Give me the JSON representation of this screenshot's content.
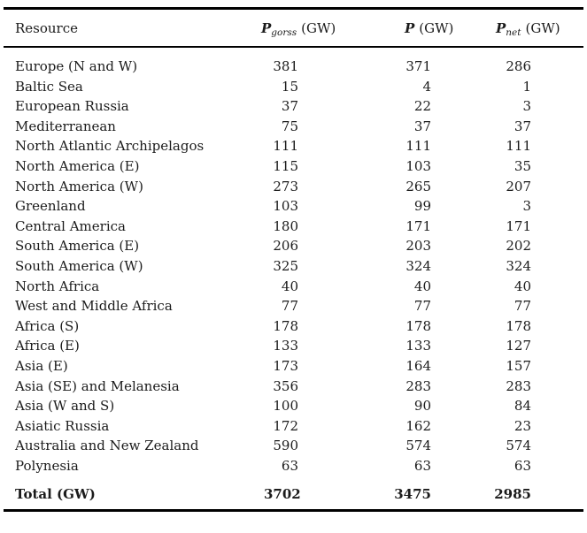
{
  "colors": {
    "text": "#1b1b1b",
    "rule": "#000000",
    "background": "#ffffff"
  },
  "table": {
    "header": {
      "resource": "Resource",
      "p_gorss": {
        "symbol": "P",
        "subscript": "gorss",
        "unit": "(GW)"
      },
      "p": {
        "symbol": "P",
        "subscript": "",
        "unit": "(GW)"
      },
      "p_net": {
        "symbol": "P",
        "subscript": "net",
        "unit": "(GW)"
      }
    },
    "rows": [
      {
        "name": "Europe (N and W)",
        "gross": "381",
        "p": "371",
        "net": "286"
      },
      {
        "name": "Baltic Sea",
        "gross": "15",
        "p": "4",
        "net": "1"
      },
      {
        "name": "European Russia",
        "gross": "37",
        "p": "22",
        "net": "3"
      },
      {
        "name": "Mediterranean",
        "gross": "75",
        "p": "37",
        "net": "37"
      },
      {
        "name": "North Atlantic Archipelagos",
        "gross": "111",
        "p": "111",
        "net": "111"
      },
      {
        "name": "North America (E)",
        "gross": "115",
        "p": "103",
        "net": "35"
      },
      {
        "name": "North America (W)",
        "gross": "273",
        "p": "265",
        "net": "207"
      },
      {
        "name": "Greenland",
        "gross": "103",
        "p": "99",
        "net": "3"
      },
      {
        "name": "Central America",
        "gross": "180",
        "p": "171",
        "net": "171"
      },
      {
        "name": "South America (E)",
        "gross": "206",
        "p": "203",
        "net": "202"
      },
      {
        "name": "South America (W)",
        "gross": "325",
        "p": "324",
        "net": "324"
      },
      {
        "name": "North Africa",
        "gross": "40",
        "p": "40",
        "net": "40"
      },
      {
        "name": "West and Middle Africa",
        "gross": "77",
        "p": "77",
        "net": "77"
      },
      {
        "name": "Africa (S)",
        "gross": "178",
        "p": "178",
        "net": "178"
      },
      {
        "name": "Africa (E)",
        "gross": "133",
        "p": "133",
        "net": "127"
      },
      {
        "name": "Asia (E)",
        "gross": "173",
        "p": "164",
        "net": "157"
      },
      {
        "name": "Asia (SE) and Melanesia",
        "gross": "356",
        "p": "283",
        "net": "283"
      },
      {
        "name": "Asia (W and S)",
        "gross": "100",
        "p": "90",
        "net": "84"
      },
      {
        "name": "Asiatic Russia",
        "gross": "172",
        "p": "162",
        "net": "23"
      },
      {
        "name": "Australia and New Zealand",
        "gross": "590",
        "p": "574",
        "net": "574"
      },
      {
        "name": "Polynesia",
        "gross": "63",
        "p": "63",
        "net": "63"
      }
    ],
    "total": {
      "name": "Total (GW)",
      "gross": "3702",
      "p": "3475",
      "net": "2985"
    }
  }
}
